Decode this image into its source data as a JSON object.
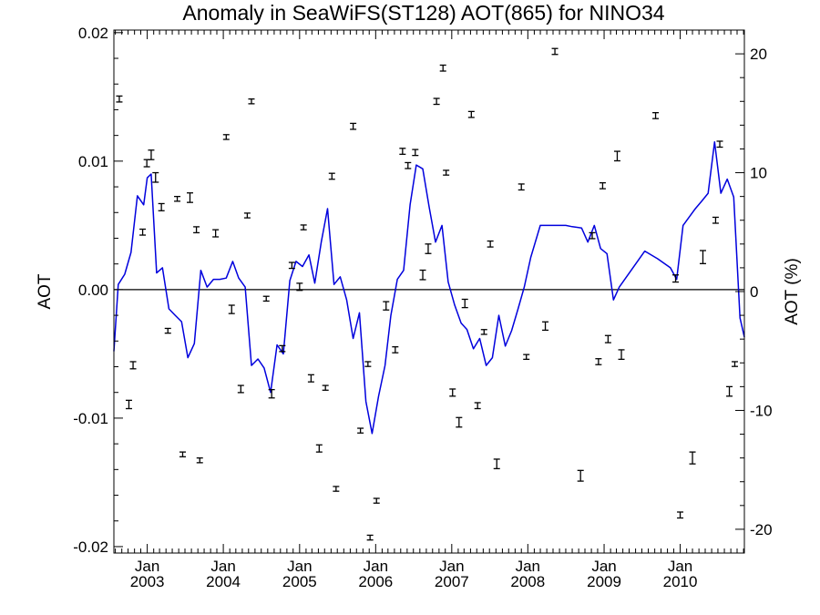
{
  "chart_data": {
    "type": "line",
    "title": "Anomaly in SeaWiFS(ST128) AOT(865) for NINO34",
    "ylabel_left": "AOT",
    "ylabel_right": "AOT (%)",
    "ylim_left": [
      -0.0205,
      0.0202
    ],
    "ylim_right": [
      -22.0,
      22.0
    ],
    "xlim": [
      "2002-07-25",
      "2010-11-05"
    ],
    "left_ticks": [
      "0.02",
      "0.01",
      "0.00",
      "-0.01",
      "-0.02"
    ],
    "left_tick_values": [
      0.02,
      0.01,
      0.0,
      -0.01,
      -0.02
    ],
    "right_ticks": [
      "20",
      "10",
      "0",
      "-10",
      "-20"
    ],
    "right_tick_values": [
      20,
      10,
      0,
      -10,
      -20
    ],
    "x_ticks": [
      {
        "date": "2003-01-01",
        "month": "Jan",
        "year": "2003"
      },
      {
        "date": "2004-01-01",
        "month": "Jan",
        "year": "2004"
      },
      {
        "date": "2005-01-01",
        "month": "Jan",
        "year": "2005"
      },
      {
        "date": "2006-01-01",
        "month": "Jan",
        "year": "2006"
      },
      {
        "date": "2007-01-01",
        "month": "Jan",
        "year": "2007"
      },
      {
        "date": "2008-01-01",
        "month": "Jan",
        "year": "2008"
      },
      {
        "date": "2009-01-01",
        "month": "Jan",
        "year": "2009"
      },
      {
        "date": "2010-01-01",
        "month": "Jan",
        "year": "2010"
      }
    ],
    "zero_line": 0.0,
    "grid": false,
    "legend": "none",
    "series": [
      {
        "role": "anomaly_aot",
        "axis": "left",
        "style": "line",
        "color": "#0000dd",
        "points": [
          [
            "2002-07-25",
            -0.0048
          ],
          [
            "2002-08-15",
            0.0004
          ],
          [
            "2002-09-15",
            0.0012
          ],
          [
            "2002-10-15",
            0.0029
          ],
          [
            "2002-11-15",
            0.0073
          ],
          [
            "2002-12-15",
            0.0066
          ],
          [
            "2003-01-01",
            0.0087
          ],
          [
            "2003-01-20",
            0.009
          ],
          [
            "2003-02-15",
            0.0013
          ],
          [
            "2003-03-15",
            0.0017
          ],
          [
            "2003-04-15",
            -0.0015
          ],
          [
            "2003-05-15",
            -0.002
          ],
          [
            "2003-06-15",
            -0.0025
          ],
          [
            "2003-07-15",
            -0.0053
          ],
          [
            "2003-08-15",
            -0.0042
          ],
          [
            "2003-09-15",
            0.0015
          ],
          [
            "2003-10-15",
            0.0002
          ],
          [
            "2003-11-15",
            0.0008
          ],
          [
            "2003-12-15",
            0.0008
          ],
          [
            "2004-01-15",
            0.0009
          ],
          [
            "2004-02-15",
            0.0022
          ],
          [
            "2004-03-15",
            0.0009
          ],
          [
            "2004-04-15",
            0.0002
          ],
          [
            "2004-05-15",
            -0.0059
          ],
          [
            "2004-06-15",
            -0.0054
          ],
          [
            "2004-07-15",
            -0.0061
          ],
          [
            "2004-08-15",
            -0.008
          ],
          [
            "2004-09-15",
            -0.0043
          ],
          [
            "2004-10-15",
            -0.005
          ],
          [
            "2004-11-15",
            0.0007
          ],
          [
            "2004-12-15",
            0.0022
          ],
          [
            "2005-01-15",
            0.0018
          ],
          [
            "2005-02-15",
            0.0027
          ],
          [
            "2005-03-15",
            0.0005
          ],
          [
            "2005-04-15",
            0.0037
          ],
          [
            "2005-05-15",
            0.0063
          ],
          [
            "2005-06-15",
            0.0004
          ],
          [
            "2005-07-15",
            0.001
          ],
          [
            "2005-08-15",
            -0.0008
          ],
          [
            "2005-09-15",
            -0.0038
          ],
          [
            "2005-10-15",
            -0.0018
          ],
          [
            "2005-11-15",
            -0.0087
          ],
          [
            "2005-12-15",
            -0.0112
          ],
          [
            "2006-01-15",
            -0.0083
          ],
          [
            "2006-02-15",
            -0.0059
          ],
          [
            "2006-03-15",
            -0.002
          ],
          [
            "2006-04-15",
            0.0008
          ],
          [
            "2006-05-15",
            0.0015
          ],
          [
            "2006-06-15",
            0.0066
          ],
          [
            "2006-07-15",
            0.0097
          ],
          [
            "2006-08-15",
            0.0094
          ],
          [
            "2006-09-15",
            0.0064
          ],
          [
            "2006-10-15",
            0.0037
          ],
          [
            "2006-11-15",
            0.005
          ],
          [
            "2006-12-15",
            0.0006
          ],
          [
            "2007-01-15",
            -0.0012
          ],
          [
            "2007-02-15",
            -0.0026
          ],
          [
            "2007-03-15",
            -0.0031
          ],
          [
            "2007-04-15",
            -0.0046
          ],
          [
            "2007-05-15",
            -0.0038
          ],
          [
            "2007-06-15",
            -0.0059
          ],
          [
            "2007-07-15",
            -0.0053
          ],
          [
            "2007-08-15",
            -0.002
          ],
          [
            "2007-09-15",
            -0.0044
          ],
          [
            "2007-10-15",
            -0.0032
          ],
          [
            "2007-11-15",
            -0.0015
          ],
          [
            "2007-12-15",
            0.0002
          ],
          [
            "2008-01-15",
            0.0025
          ],
          [
            "2008-03-01",
            0.005
          ],
          [
            "2008-05-01",
            0.005
          ],
          [
            "2008-07-01",
            0.005
          ],
          [
            "2008-08-01",
            0.0049
          ],
          [
            "2008-09-15",
            0.0048
          ],
          [
            "2008-10-15",
            0.0037
          ],
          [
            "2008-11-15",
            0.005
          ],
          [
            "2008-12-15",
            0.0032
          ],
          [
            "2009-01-15",
            0.0028
          ],
          [
            "2009-02-15",
            -0.0008
          ],
          [
            "2009-03-15",
            0.0002
          ],
          [
            "2009-05-15",
            0.0016
          ],
          [
            "2009-07-15",
            0.003
          ],
          [
            "2009-09-15",
            0.0024
          ],
          [
            "2009-11-15",
            0.0017
          ],
          [
            "2009-12-15",
            0.0008
          ],
          [
            "2010-01-15",
            0.005
          ],
          [
            "2010-03-15",
            0.0063
          ],
          [
            "2010-04-15",
            0.0069
          ],
          [
            "2010-05-15",
            0.0075
          ],
          [
            "2010-06-15",
            0.0115
          ],
          [
            "2010-07-15",
            0.0075
          ],
          [
            "2010-08-15",
            0.0086
          ],
          [
            "2010-09-15",
            0.0072
          ],
          [
            "2010-10-15",
            -0.0022
          ],
          [
            "2010-11-05",
            -0.0037
          ]
        ]
      },
      {
        "role": "aot_percent_with_error",
        "axis": "right",
        "style": "errorbar",
        "color": "#000000",
        "points": [
          {
            "date": "2002-08-20",
            "y": 16.2,
            "err": 0.25
          },
          {
            "date": "2002-10-05",
            "y": -9.5,
            "err": 0.35
          },
          {
            "date": "2002-10-25",
            "y": -6.2,
            "err": 0.3
          },
          {
            "date": "2002-12-10",
            "y": 5.0,
            "err": 0.25
          },
          {
            "date": "2002-12-30",
            "y": 10.8,
            "err": 0.3
          },
          {
            "date": "2003-01-20",
            "y": 11.5,
            "err": 0.4
          },
          {
            "date": "2003-02-10",
            "y": 9.6,
            "err": 0.4
          },
          {
            "date": "2003-03-10",
            "y": 7.1,
            "err": 0.3
          },
          {
            "date": "2003-04-10",
            "y": -3.3,
            "err": 0.2
          },
          {
            "date": "2003-05-25",
            "y": 7.8,
            "err": 0.2
          },
          {
            "date": "2003-06-20",
            "y": -13.7,
            "err": 0.2
          },
          {
            "date": "2003-07-25",
            "y": 7.9,
            "err": 0.4
          },
          {
            "date": "2003-08-25",
            "y": 5.2,
            "err": 0.25
          },
          {
            "date": "2003-09-10",
            "y": -14.2,
            "err": 0.2
          },
          {
            "date": "2003-11-25",
            "y": 4.9,
            "err": 0.3
          },
          {
            "date": "2004-01-15",
            "y": 13.0,
            "err": 0.2
          },
          {
            "date": "2004-02-10",
            "y": -1.5,
            "err": 0.35
          },
          {
            "date": "2004-03-25",
            "y": -8.2,
            "err": 0.3
          },
          {
            "date": "2004-04-25",
            "y": 6.4,
            "err": 0.2
          },
          {
            "date": "2004-05-15",
            "y": 16.0,
            "err": 0.2
          },
          {
            "date": "2004-07-25",
            "y": -0.6,
            "err": 0.2
          },
          {
            "date": "2004-08-20",
            "y": -8.6,
            "err": 0.35
          },
          {
            "date": "2004-10-10",
            "y": -4.8,
            "err": 0.25
          },
          {
            "date": "2004-11-25",
            "y": 2.2,
            "err": 0.25
          },
          {
            "date": "2005-01-01",
            "y": 0.4,
            "err": 0.3
          },
          {
            "date": "2005-01-20",
            "y": 5.4,
            "err": 0.2
          },
          {
            "date": "2005-02-25",
            "y": -7.3,
            "err": 0.3
          },
          {
            "date": "2005-04-05",
            "y": -13.2,
            "err": 0.3
          },
          {
            "date": "2005-05-05",
            "y": -8.1,
            "err": 0.2
          },
          {
            "date": "2005-06-05",
            "y": 9.7,
            "err": 0.25
          },
          {
            "date": "2005-06-25",
            "y": -16.6,
            "err": 0.2
          },
          {
            "date": "2005-09-15",
            "y": 13.9,
            "err": 0.25
          },
          {
            "date": "2005-10-20",
            "y": -11.7,
            "err": 0.2
          },
          {
            "date": "2005-11-25",
            "y": -6.1,
            "err": 0.2
          },
          {
            "date": "2005-12-05",
            "y": -20.7,
            "err": 0.2
          },
          {
            "date": "2006-01-05",
            "y": -17.6,
            "err": 0.2
          },
          {
            "date": "2006-02-20",
            "y": -1.2,
            "err": 0.35
          },
          {
            "date": "2006-04-05",
            "y": -4.9,
            "err": 0.25
          },
          {
            "date": "2006-05-10",
            "y": 11.8,
            "err": 0.25
          },
          {
            "date": "2006-06-05",
            "y": 10.6,
            "err": 0.25
          },
          {
            "date": "2006-07-10",
            "y": 11.7,
            "err": 0.25
          },
          {
            "date": "2006-08-15",
            "y": 1.4,
            "err": 0.4
          },
          {
            "date": "2006-09-10",
            "y": 3.6,
            "err": 0.4
          },
          {
            "date": "2006-10-20",
            "y": 16.0,
            "err": 0.25
          },
          {
            "date": "2006-11-20",
            "y": 18.8,
            "err": 0.25
          },
          {
            "date": "2006-12-05",
            "y": 10.0,
            "err": 0.2
          },
          {
            "date": "2007-01-05",
            "y": -8.5,
            "err": 0.3
          },
          {
            "date": "2007-02-05",
            "y": -11.0,
            "err": 0.4
          },
          {
            "date": "2007-03-05",
            "y": -1.0,
            "err": 0.35
          },
          {
            "date": "2007-04-05",
            "y": 14.9,
            "err": 0.25
          },
          {
            "date": "2007-05-05",
            "y": -9.6,
            "err": 0.25
          },
          {
            "date": "2007-06-05",
            "y": -3.4,
            "err": 0.2
          },
          {
            "date": "2007-07-05",
            "y": 4.0,
            "err": 0.25
          },
          {
            "date": "2007-08-05",
            "y": -14.5,
            "err": 0.4
          },
          {
            "date": "2007-12-01",
            "y": 8.8,
            "err": 0.25
          },
          {
            "date": "2007-12-25",
            "y": -5.5,
            "err": 0.2
          },
          {
            "date": "2008-03-25",
            "y": -2.9,
            "err": 0.35
          },
          {
            "date": "2008-05-10",
            "y": 20.2,
            "err": 0.25
          },
          {
            "date": "2008-09-10",
            "y": -15.5,
            "err": 0.45
          },
          {
            "date": "2008-11-05",
            "y": 4.7,
            "err": 0.25
          },
          {
            "date": "2008-12-05",
            "y": -5.9,
            "err": 0.25
          },
          {
            "date": "2008-12-25",
            "y": 8.9,
            "err": 0.25
          },
          {
            "date": "2009-01-20",
            "y": -4.0,
            "err": 0.3
          },
          {
            "date": "2009-03-05",
            "y": 11.4,
            "err": 0.4
          },
          {
            "date": "2009-03-25",
            "y": -5.3,
            "err": 0.4
          },
          {
            "date": "2009-09-05",
            "y": 14.8,
            "err": 0.25
          },
          {
            "date": "2009-12-10",
            "y": 1.1,
            "err": 0.3
          },
          {
            "date": "2010-01-01",
            "y": -18.8,
            "err": 0.25
          },
          {
            "date": "2010-03-01",
            "y": -14.0,
            "err": 0.5
          },
          {
            "date": "2010-04-20",
            "y": 2.9,
            "err": 0.55
          },
          {
            "date": "2010-06-20",
            "y": 6.0,
            "err": 0.25
          },
          {
            "date": "2010-07-10",
            "y": 12.4,
            "err": 0.25
          },
          {
            "date": "2010-08-25",
            "y": -8.4,
            "err": 0.4
          },
          {
            "date": "2010-09-20",
            "y": -6.1,
            "err": 0.2
          }
        ]
      }
    ]
  }
}
